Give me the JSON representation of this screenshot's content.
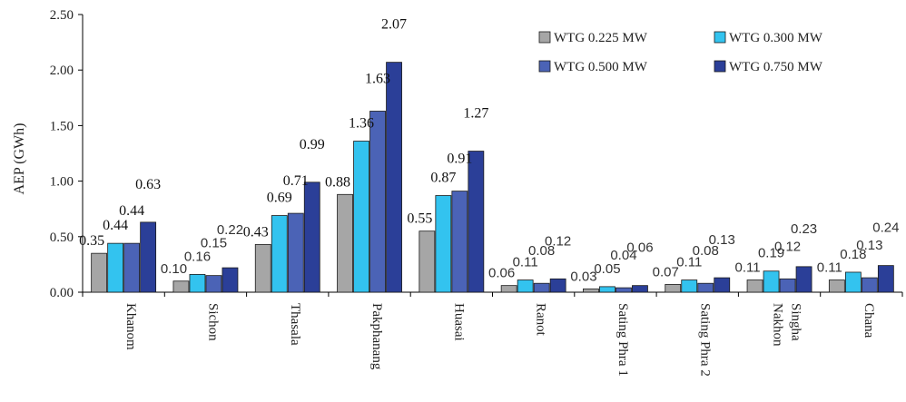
{
  "chart_data": {
    "type": "bar",
    "title": "",
    "xlabel": "",
    "ylabel": "AEP (GWh)",
    "ylim": [
      0,
      2.5
    ],
    "yticks": [
      "0.00",
      "0.50",
      "1.00",
      "1.50",
      "2.00",
      "2.50"
    ],
    "grid": false,
    "legend_position": "top-right",
    "categories": [
      "Khanom",
      "Sichon",
      "Thasala",
      "Pakphanang",
      "Huasai",
      "Ranot",
      "Sating Phra 1",
      "Sating Phra 2",
      "Singha Nakhon",
      "Chana"
    ],
    "category_lines": [
      [
        "Khanom"
      ],
      [
        "Sichon"
      ],
      [
        "Thasala"
      ],
      [
        "Pakphanang"
      ],
      [
        "Huasai"
      ],
      [
        "Ranot"
      ],
      [
        "Sating Phra 1"
      ],
      [
        "Sating Phra 2"
      ],
      [
        "Singha",
        "Nakhon"
      ],
      [
        "Chana"
      ]
    ],
    "series": [
      {
        "name": "WTG 0.225 MW",
        "color": "#a6a6a6",
        "values": [
          0.35,
          0.1,
          0.43,
          0.88,
          0.55,
          0.06,
          0.03,
          0.07,
          0.11,
          0.11
        ],
        "labels": [
          "0.35",
          "0.10",
          "0.43",
          "0.88",
          "0.55",
          "0.06",
          "0.03",
          "0.07",
          "0.11",
          "0.11"
        ]
      },
      {
        "name": "WTG 0.300 MW",
        "color": "#33c3ef",
        "values": [
          0.44,
          0.16,
          0.69,
          1.36,
          0.87,
          0.11,
          0.05,
          0.11,
          0.19,
          0.18
        ],
        "labels": [
          "0.44",
          "0.16",
          "0.69",
          "1.36",
          "0.87",
          "0.11",
          "0.05",
          "0.11",
          "0.19",
          "0.18"
        ]
      },
      {
        "name": "WTG 0.500 MW",
        "color": "#4b63b6",
        "values": [
          0.44,
          0.15,
          0.71,
          1.63,
          0.91,
          0.08,
          0.04,
          0.08,
          0.12,
          0.13
        ],
        "labels": [
          "0.44",
          "0.15",
          "0.71",
          "1.63",
          "0.91",
          "0.08",
          "0.04",
          "0.08",
          "0.12",
          "0.13"
        ]
      },
      {
        "name": "WTG 0.750 MW",
        "color": "#2b3f98",
        "values": [
          0.63,
          0.22,
          0.99,
          2.07,
          1.27,
          0.12,
          0.06,
          0.13,
          0.23,
          0.24
        ],
        "labels": [
          "0.63",
          "0.22",
          "0.99",
          "2.07",
          "1.27",
          "0.12",
          "0.06",
          "0.13",
          "0.23",
          "0.24"
        ]
      }
    ]
  }
}
